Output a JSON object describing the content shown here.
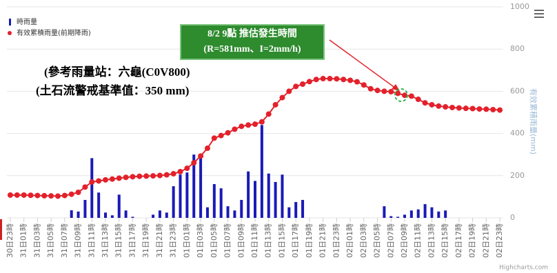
{
  "chart_data": {
    "type": "combo",
    "categories": [
      "30日23時",
      null,
      "31日01時",
      null,
      "31日03時",
      null,
      "31日05時",
      null,
      "31日07時",
      null,
      "31日09時",
      null,
      "31日11時",
      null,
      "31日13時",
      null,
      "31日15時",
      null,
      "31日17時",
      null,
      "31日19時",
      null,
      "31日21時",
      null,
      "31日23時",
      null,
      "01日01時",
      null,
      "01日03時",
      null,
      "01日05時",
      null,
      "01日07時",
      null,
      "01日09時",
      null,
      "01日11時",
      null,
      "01日13時",
      null,
      "01日15時",
      null,
      "01日17時",
      null,
      "01日19時",
      null,
      "01日21時",
      null,
      "01日23時",
      null,
      "02日01時",
      null,
      "02日03時",
      null,
      "02日05時",
      null,
      "02日07時",
      null,
      "02日09時",
      null,
      "02日11時",
      null,
      "02日13時",
      null,
      "02日15時",
      null,
      "02日17時",
      null,
      "02日19時",
      null,
      "02日21時",
      null,
      "02日23時"
    ],
    "series": [
      {
        "name": "時雨量",
        "type": "column",
        "color": "#1a1ab8",
        "values": [
          0,
          0,
          0,
          0,
          0,
          0,
          0,
          0,
          0,
          36,
          30,
          85,
          283,
          120,
          25,
          12,
          110,
          35,
          5,
          0,
          0,
          15,
          35,
          25,
          150,
          205,
          215,
          300,
          295,
          50,
          160,
          140,
          55,
          35,
          85,
          220,
          175,
          440,
          210,
          170,
          205,
          50,
          75,
          85,
          0,
          0,
          0,
          0,
          0,
          0,
          0,
          0,
          0,
          0,
          0,
          55,
          8,
          5,
          15,
          35,
          40,
          65,
          50,
          30,
          35,
          0,
          0,
          0,
          0,
          0,
          0,
          0,
          0
        ]
      },
      {
        "name": "有效累積雨量(前期降雨)",
        "type": "line",
        "color": "#e3212b",
        "values": [
          108,
          108,
          108,
          107,
          106,
          105,
          104,
          103,
          106,
          112,
          121,
          146,
          170,
          175,
          180,
          184,
          188,
          192,
          195,
          197,
          198,
          199,
          201,
          204,
          209,
          219,
          235,
          261,
          293,
          330,
          378,
          390,
          403,
          420,
          434,
          440,
          444,
          455,
          492,
          536,
          570,
          600,
          623,
          634,
          646,
          656,
          660,
          660,
          659,
          656,
          652,
          645,
          630,
          612,
          604,
          600,
          598,
          590,
          581,
          577,
          562,
          545,
          536,
          530,
          526,
          523,
          521,
          519,
          518,
          516,
          515,
          513,
          511
        ]
      }
    ],
    "y2lim": [
      0,
      1000
    ],
    "y2ticks": [
      0,
      200,
      400,
      600,
      800,
      1000
    ],
    "y2_axis_label": "有效累積雨量(mm)",
    "grid": true,
    "legend": "top-left",
    "annotations": [
      "(參考雨量站：六龜(C0V800)",
      "(土石流警戒基準值：350 mm)"
    ],
    "callout": [
      "8/2  9點  推估發生時間",
      "(R=581mm、I=2mm/h)"
    ],
    "credit": "Highcharts.com"
  }
}
